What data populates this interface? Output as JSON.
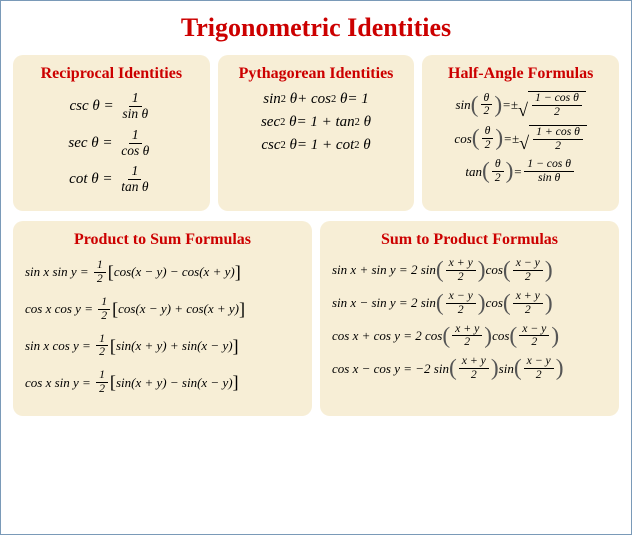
{
  "page": {
    "title": "Trigonometric Identities",
    "border_color": "#7a9ab8",
    "background": "#ffffff"
  },
  "cards": {
    "reciprocal": {
      "title": "Reciprocal Identities",
      "bg": "#f7eed6",
      "eq1": {
        "lhs": "csc θ",
        "num": "1",
        "den": "sin θ"
      },
      "eq2": {
        "lhs": "sec θ",
        "num": "1",
        "den": "cos θ"
      },
      "eq3": {
        "lhs": "cot θ",
        "num": "1",
        "den": "tan θ"
      }
    },
    "pythagorean": {
      "title": "Pythagorean Identities",
      "bg": "#f7eed6",
      "eq1": "sin² θ + cos² θ = 1",
      "eq2": "sec² θ = 1 + tan² θ",
      "eq3": "csc² θ = 1 + cot² θ"
    },
    "halfangle": {
      "title": "Half-Angle Formulas",
      "bg": "#f7eed6",
      "eq1": {
        "fn": "sin",
        "arg_num": "θ",
        "arg_den": "2",
        "pm": "±",
        "r_num": "1 − cos θ",
        "r_den": "2"
      },
      "eq2": {
        "fn": "cos",
        "arg_num": "θ",
        "arg_den": "2",
        "pm": "±",
        "r_num": "1 + cos θ",
        "r_den": "2"
      },
      "eq3": {
        "fn": "tan",
        "arg_num": "θ",
        "arg_den": "2",
        "r_num": "1 − cos θ",
        "r_den": "sin θ"
      }
    },
    "prod2sum": {
      "title": "Product to Sum Formulas",
      "bg": "#f7eed6",
      "eq1": {
        "lhs": "sin x sin y",
        "c_num": "1",
        "c_den": "2",
        "body": "cos(x − y) − cos(x + y)"
      },
      "eq2": {
        "lhs": "cos x cos y",
        "c_num": "1",
        "c_den": "2",
        "body": "cos(x − y) + cos(x + y)"
      },
      "eq3": {
        "lhs": "sin x cos y",
        "c_num": "1",
        "c_den": "2",
        "body": "sin(x + y) + sin(x − y)"
      },
      "eq4": {
        "lhs": "cos x sin y",
        "c_num": "1",
        "c_den": "2",
        "body": "sin(x + y) − sin(x − y)"
      }
    },
    "sum2prod": {
      "title": "Sum to Product Formulas",
      "bg": "#f7eed6",
      "eq1": {
        "lhs": "sin x + sin y",
        "coef": "2 sin",
        "a_num": "x + y",
        "a_den": "2",
        "mid": "cos",
        "b_num": "x − y",
        "b_den": "2"
      },
      "eq2": {
        "lhs": "sin x − sin y",
        "coef": "2 sin",
        "a_num": "x − y",
        "a_den": "2",
        "mid": "cos",
        "b_num": "x + y",
        "b_den": "2"
      },
      "eq3": {
        "lhs": "cos x + cos y",
        "coef": "2 cos",
        "a_num": "x + y",
        "a_den": "2",
        "mid": "cos",
        "b_num": "x − y",
        "b_den": "2"
      },
      "eq4": {
        "lhs": "cos x − cos y",
        "coef": "−2 sin",
        "a_num": "x + y",
        "a_den": "2",
        "mid": "sin",
        "b_num": "x − y",
        "b_den": "2"
      }
    }
  },
  "style": {
    "title_color": "#cc0000",
    "card_title_color": "#cc0000",
    "text_color": "#000000",
    "title_fontsize": 26,
    "card_title_fontsize": 16,
    "eq_fontsize": 15,
    "small_eq_fontsize": 13,
    "card_radius": 10
  }
}
